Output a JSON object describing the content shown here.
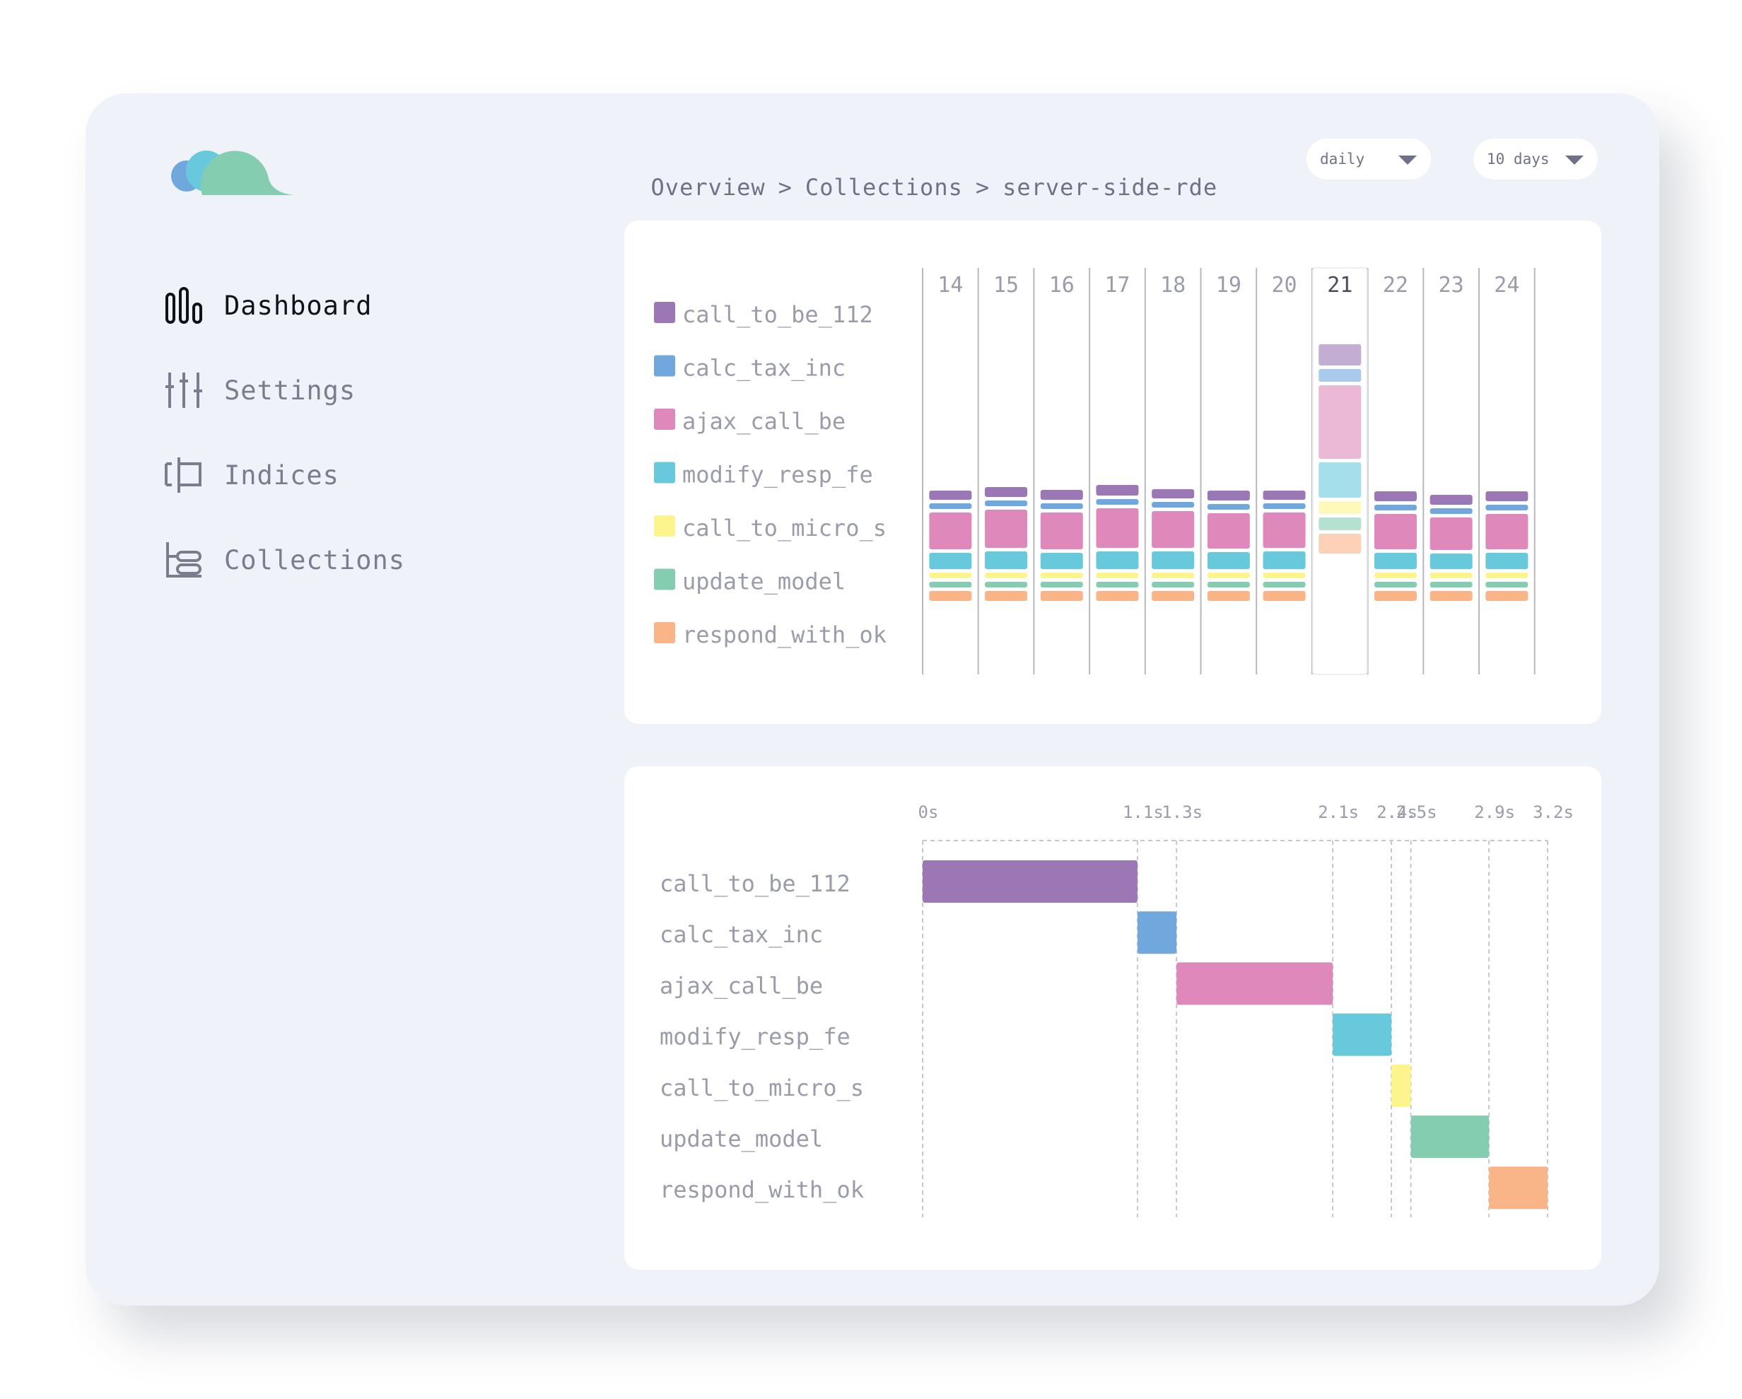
{
  "breadcrumb": {
    "items": [
      "Overview",
      "Collections",
      "server-side-rde"
    ],
    "separator": ">"
  },
  "nav": {
    "items": [
      {
        "label": "Dashboard",
        "icon": "bar-chart-icon",
        "active": true
      },
      {
        "label": "Settings",
        "icon": "sliders-icon",
        "active": false
      },
      {
        "label": "Indices",
        "icon": "indices-icon",
        "active": false
      },
      {
        "label": "Collections",
        "icon": "collections-icon",
        "active": false
      }
    ]
  },
  "filters": {
    "interval": "daily",
    "range": "10 days"
  },
  "colors": {
    "call_to_be_112": "#9b77b6",
    "calc_tax_inc": "#70a8de",
    "ajax_call_be": "#de88bb",
    "modify_resp_fe": "#68c9dd",
    "call_to_micro_s": "#fcf58e",
    "update_model": "#84cdb1",
    "respond_with_ok": "#f9b488"
  },
  "chart_data": [
    {
      "type": "bar",
      "stacked": true,
      "categories": [
        "14",
        "15",
        "16",
        "17",
        "18",
        "19",
        "20",
        "21",
        "22",
        "23",
        "24"
      ],
      "highlighted_category": "21",
      "series": [
        {
          "name": "call_to_be_112",
          "values": [
            13,
            14,
            14,
            15,
            13,
            14,
            13,
            30,
            14,
            14,
            14
          ]
        },
        {
          "name": "calc_tax_inc",
          "values": [
            8,
            8,
            8,
            8,
            8,
            8,
            8,
            18,
            8,
            8,
            8
          ]
        },
        {
          "name": "ajax_call_be",
          "values": [
            52,
            54,
            52,
            56,
            52,
            50,
            50,
            104,
            50,
            46,
            50
          ]
        },
        {
          "name": "modify_resp_fe",
          "values": [
            23,
            25,
            23,
            25,
            25,
            24,
            25,
            50,
            23,
            22,
            23
          ]
        },
        {
          "name": "call_to_micro_s",
          "values": [
            8,
            8,
            8,
            8,
            8,
            8,
            8,
            18,
            8,
            8,
            8
          ]
        },
        {
          "name": "update_model",
          "values": [
            8,
            8,
            8,
            8,
            8,
            8,
            8,
            18,
            8,
            8,
            8
          ]
        },
        {
          "name": "respond_with_ok",
          "values": [
            14,
            14,
            14,
            14,
            14,
            14,
            14,
            28,
            14,
            14,
            14
          ]
        }
      ]
    },
    {
      "type": "timeline",
      "x_ticks": [
        "0s",
        "1.1s",
        "1.3s",
        "2.1s",
        "2.4s",
        "2.5s",
        "2.9s",
        "3.2s"
      ],
      "tasks": [
        {
          "name": "call_to_be_112",
          "start": 0,
          "end": 1.1
        },
        {
          "name": "calc_tax_inc",
          "start": 1.1,
          "end": 1.3
        },
        {
          "name": "ajax_call_be",
          "start": 1.3,
          "end": 2.1
        },
        {
          "name": "modify_resp_fe",
          "start": 2.1,
          "end": 2.4
        },
        {
          "name": "call_to_micro_s",
          "start": 2.4,
          "end": 2.5
        },
        {
          "name": "update_model",
          "start": 2.5,
          "end": 2.9
        },
        {
          "name": "respond_with_ok",
          "start": 2.9,
          "end": 3.2
        }
      ]
    }
  ]
}
